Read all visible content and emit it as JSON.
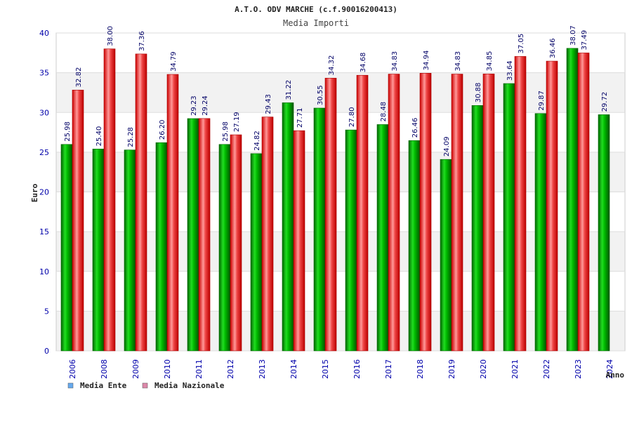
{
  "chart_data": {
    "type": "bar",
    "title": "A.T.O. ODV MARCHE (c.f.90016200413)",
    "subtitle": "Media Importi",
    "ylabel": "Euro",
    "xlabel": "Anno",
    "ylim": [
      0,
      40
    ],
    "yticks": [
      0,
      5,
      10,
      15,
      20,
      25,
      30,
      35,
      40
    ],
    "grid": true,
    "legend_position": "bottom-left",
    "categories": [
      "2006",
      "2008",
      "2009",
      "2010",
      "2011",
      "2012",
      "2013",
      "2014",
      "2015",
      "2016",
      "2017",
      "2018",
      "2019",
      "2020",
      "2021",
      "2022",
      "2023",
      "2024"
    ],
    "series": [
      {
        "name": "Media Ente",
        "legend_swatch": "#66aaee",
        "color": "#00aa00",
        "values": [
          25.98,
          25.4,
          25.28,
          26.2,
          29.23,
          25.98,
          24.82,
          31.22,
          30.55,
          27.8,
          28.48,
          26.46,
          24.09,
          30.88,
          33.64,
          29.87,
          38.07,
          29.72
        ],
        "labels": [
          "25.98",
          "25.40",
          "25.28",
          "26.20",
          "29.23",
          "25.98",
          "24.82",
          "31.22",
          "30.55",
          "27.80",
          "28.48",
          "26.46",
          "24.09",
          "30.88",
          "33.64",
          "29.87",
          "38.07",
          "29.72"
        ]
      },
      {
        "name": "Media Nazionale",
        "legend_swatch": "#dd88aa",
        "color": "#ee2222",
        "values": [
          32.82,
          38.0,
          37.36,
          34.79,
          29.24,
          27.19,
          29.43,
          27.71,
          34.32,
          34.68,
          34.83,
          34.94,
          34.83,
          34.85,
          37.05,
          36.46,
          37.49,
          null
        ],
        "labels": [
          "32.82",
          "38.00",
          "37.36",
          "34.79",
          "29.24",
          "27.19",
          "29.43",
          "27.71",
          "34.32",
          "34.68",
          "34.83",
          "34.94",
          "34.83",
          "34.85",
          "37.05",
          "36.46",
          "37.49",
          null
        ]
      }
    ]
  }
}
